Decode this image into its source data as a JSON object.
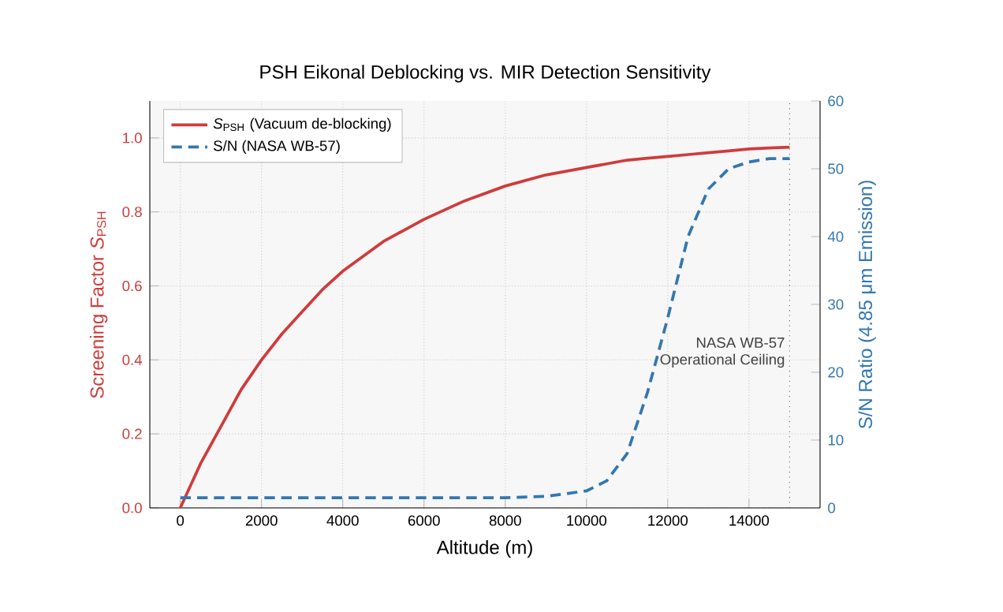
{
  "chart_data": {
    "type": "line",
    "title": "PSH Eikonal Deblocking vs. MIR Detection Sensitivity",
    "xlabel": "Altitude (m)",
    "ylabel": "Screening Factor *S*$_{PSH}$",
    "y2label": "S/N Ratio (4.85 μm Emission)",
    "x": [
      0,
      500,
      1000,
      1500,
      2000,
      2500,
      3000,
      3500,
      4000,
      5000,
      6000,
      7000,
      8000,
      9000,
      10000,
      10500,
      11000,
      11500,
      12000,
      12500,
      13000,
      13500,
      14000,
      14500,
      15000
    ],
    "series": [
      {
        "name": "*S*$_{PSH}$ (Vacuum de-blocking)",
        "color": "#d03b3b",
        "values": [
          0.0,
          0.12,
          0.22,
          0.32,
          0.4,
          0.47,
          0.53,
          0.59,
          0.64,
          0.72,
          0.78,
          0.83,
          0.87,
          0.9,
          0.92,
          0.93,
          0.94,
          0.945,
          0.95,
          0.955,
          0.96,
          0.965,
          0.97,
          0.973,
          0.975
        ]
      },
      {
        "name": "S/N (NASA WB-57)",
        "color": "#3377b0",
        "axis": "y2",
        "line_style": "dashed",
        "values": [
          1.5,
          1.5,
          1.5,
          1.5,
          1.5,
          1.5,
          1.5,
          1.5,
          1.5,
          1.5,
          1.5,
          1.5,
          1.5,
          1.7,
          2.5,
          4,
          8,
          17,
          28,
          40,
          47,
          50,
          51,
          51.5,
          51.5
        ]
      }
    ],
    "xlim": [
      -750,
      15750
    ],
    "xticks": [
      0,
      2000,
      4000,
      6000,
      8000,
      10000,
      12000,
      14000
    ],
    "ylim": [
      0,
      1.1
    ],
    "yticks": [
      {
        "value": 0,
        "label": "0.0"
      },
      0.2,
      0.4,
      0.6,
      0.8,
      {
        "value": 1,
        "label": "1.0"
      }
    ],
    "y2lim": [
      0,
      60
    ],
    "y2ticks": [
      0,
      10,
      20,
      30,
      40,
      50,
      60
    ],
    "ref_lines": [
      {
        "axis": "x",
        "value": 15000,
        "label": "NASA WB-57\nOperational Ceiling",
        "color": "#555555",
        "line_style": "dotted"
      }
    ],
    "grid": true,
    "legend": "top left"
  }
}
